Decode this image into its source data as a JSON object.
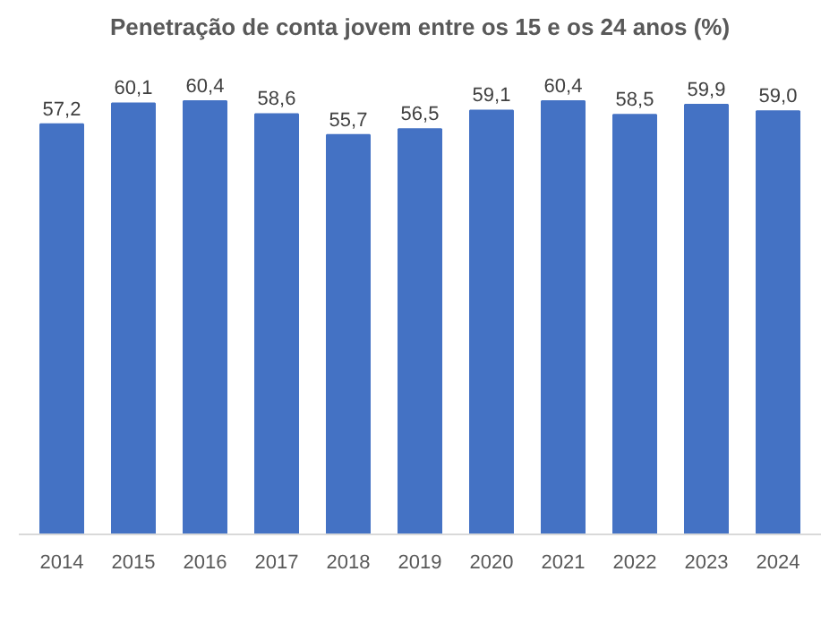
{
  "chart_data": {
    "type": "bar",
    "title": "Penetração de conta jovem entre os 15 e os 24 anos (%)",
    "categories": [
      "2014",
      "2015",
      "2016",
      "2017",
      "2018",
      "2019",
      "2020",
      "2021",
      "2022",
      "2023",
      "2024"
    ],
    "values": [
      57.2,
      60.1,
      60.4,
      58.6,
      55.7,
      56.5,
      59.1,
      60.4,
      58.5,
      59.9,
      59.0
    ],
    "value_labels": [
      "57,2",
      "60,1",
      "60,4",
      "58,6",
      "55,7",
      "56,5",
      "59,1",
      "60,4",
      "58,5",
      "59,9",
      "59,0"
    ],
    "color": "#4472c4",
    "grid": false
  }
}
